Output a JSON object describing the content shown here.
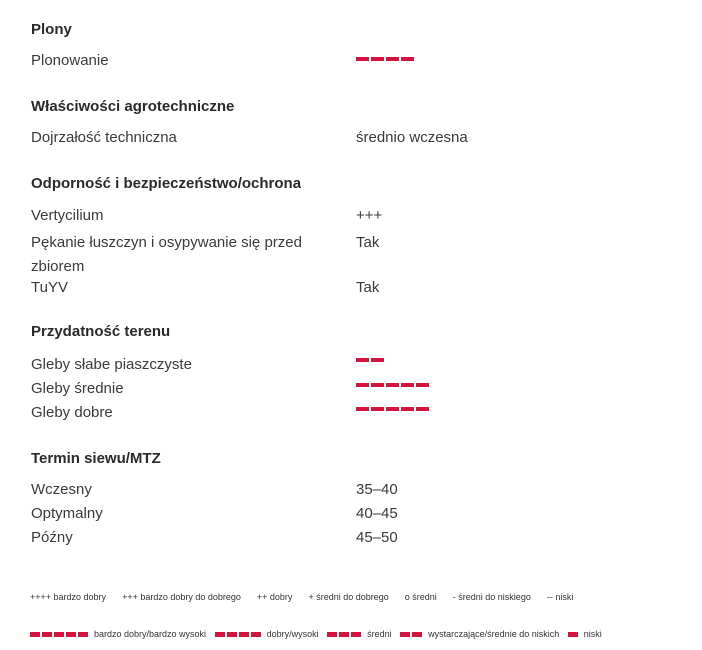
{
  "sections": [
    {
      "title": "Plony",
      "rows": [
        {
          "label": "Plonowanie",
          "bars": 4
        }
      ]
    },
    {
      "title": "Właściwości agrotechniczne",
      "rows": [
        {
          "label": "Dojrzałość techniczna",
          "value": "średnio wczesna"
        }
      ]
    },
    {
      "title": "Odporność i bezpieczeństwo/ochrona",
      "rows": [
        {
          "label": "Vertycilium",
          "value": "+++"
        },
        {
          "label": "Pękanie łuszczyn i osypywanie się przed zbiorem",
          "value": "Tak"
        },
        {
          "label": "TuYV",
          "value": "Tak"
        }
      ]
    },
    {
      "title": "Przydatność terenu",
      "rows": [
        {
          "label": "Gleby słabe piaszczyste",
          "bars": 2
        },
        {
          "label": "Gleby średnie",
          "bars": 5
        },
        {
          "label": "Gleby dobre",
          "bars": 5
        }
      ]
    },
    {
      "title": "Termin siewu/MTZ",
      "rows": [
        {
          "label": "Wczesny",
          "value": "35–40"
        },
        {
          "label": "Optymalny",
          "value": "40–45"
        },
        {
          "label": "Późny",
          "value": "45–50"
        }
      ]
    }
  ],
  "legend_symbols": [
    "++++ bardzo dobry",
    "+++ bardzo dobry do dobrego",
    "++ dobry",
    "+ średni do dobrego",
    "o średni",
    "- średni do niskiego",
    "-- niski"
  ],
  "legend_bars": [
    {
      "bars": 5,
      "label": "bardzo dobry/bardzo wysoki"
    },
    {
      "bars": 4,
      "label": "dobry/wysoki"
    },
    {
      "bars": 3,
      "label": "średni"
    },
    {
      "bars": 2,
      "label": "wystarczające/średnie do niskich"
    },
    {
      "bars": 1,
      "label": "niski"
    }
  ],
  "colors": {
    "bar": "#d4143c"
  }
}
